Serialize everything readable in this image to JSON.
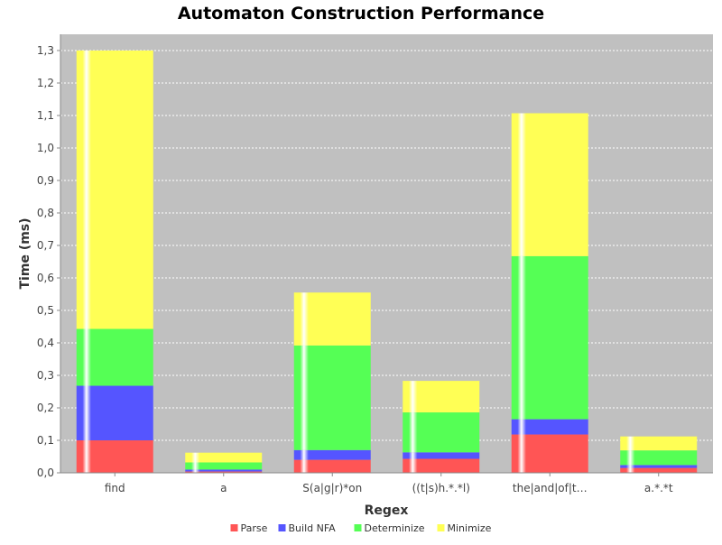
{
  "chart_data": {
    "type": "bar",
    "stacked": true,
    "title": "Automaton Construction Performance",
    "xlabel": "Regex",
    "ylabel": "Time (ms)",
    "ylim": [
      0,
      1.35
    ],
    "yticks": [
      "0,0",
      "0,1",
      "0,2",
      "0,3",
      "0,4",
      "0,5",
      "0,6",
      "0,7",
      "0,8",
      "0,9",
      "1,0",
      "1,1",
      "1,2",
      "1,3"
    ],
    "ytick_values": [
      0,
      0.1,
      0.2,
      0.3,
      0.4,
      0.5,
      0.6,
      0.7,
      0.8,
      0.9,
      1.0,
      1.1,
      1.2,
      1.3
    ],
    "grid": true,
    "legend_position": "bottom",
    "categories": [
      "find",
      "a",
      "S(a|g|r)*on",
      "((t|s)h.*.*l)",
      "the|and|of|t…",
      "a.*.*t"
    ],
    "series": [
      {
        "name": "Parse",
        "color": "#ff5555",
        "values": [
          0.1,
          0.004,
          0.04,
          0.043,
          0.118,
          0.015
        ]
      },
      {
        "name": "Build NFA",
        "color": "#5555ff",
        "values": [
          0.168,
          0.006,
          0.03,
          0.02,
          0.047,
          0.009
        ]
      },
      {
        "name": "Determinize",
        "color": "#55ff55",
        "values": [
          0.175,
          0.022,
          0.322,
          0.123,
          0.502,
          0.045
        ]
      },
      {
        "name": "Minimize",
        "color": "#ffff55",
        "values": [
          0.857,
          0.03,
          0.163,
          0.097,
          0.44,
          0.043
        ]
      }
    ]
  },
  "colors": {
    "plot_background": "#c0c0c0",
    "gridline": "#ffffff"
  }
}
